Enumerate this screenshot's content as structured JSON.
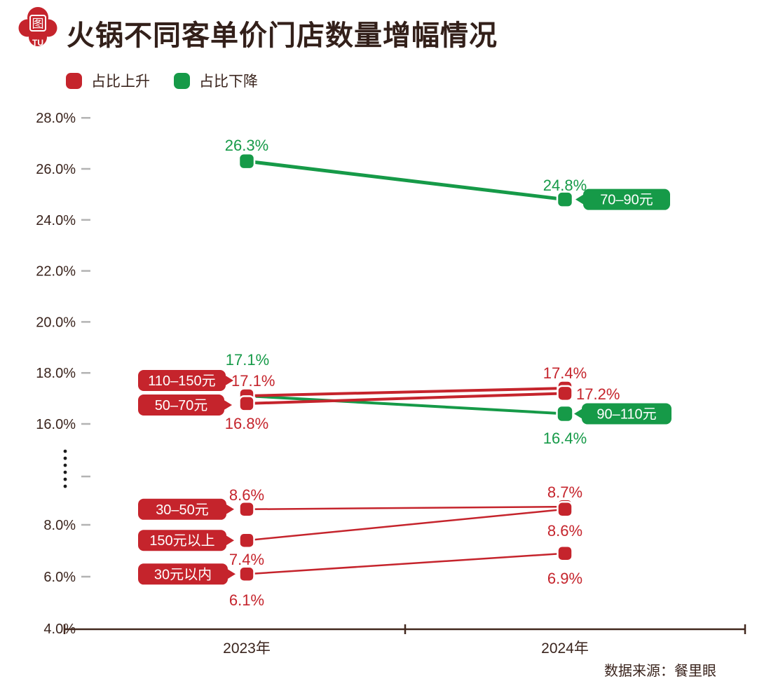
{
  "header": {
    "logo": {
      "char": "图",
      "sub": "TU"
    },
    "title": "火锅不同客单价门店数量增幅情况"
  },
  "legend": {
    "items": [
      {
        "label": "占比上升",
        "color": "#C5242C"
      },
      {
        "label": "占比下降",
        "color": "#169A48"
      }
    ]
  },
  "footer": {
    "source": "数据来源：餐里眼"
  },
  "chart_data": {
    "type": "line",
    "title": "火锅不同客单价门店数量增幅情况",
    "x_categories": [
      "2023年",
      "2024年"
    ],
    "value_suffix": "%",
    "y_axis": {
      "unit": "%",
      "top_ticks": [
        28.0,
        26.0,
        24.0,
        22.0,
        20.0,
        18.0,
        16.0
      ],
      "bottom_ticks": [
        8.0,
        6.0,
        4.0
      ],
      "axis_break_between": [
        16.0,
        8.0
      ],
      "grid": false
    },
    "series": [
      {
        "name": "70–90元",
        "direction": "占比下降",
        "color": "#169A48",
        "values": [
          26.3,
          24.8
        ]
      },
      {
        "name": "90–110元",
        "direction": "占比下降",
        "color": "#169A48",
        "values": [
          17.1,
          16.4
        ]
      },
      {
        "name": "110–150元",
        "direction": "占比上升",
        "color": "#C5242C",
        "values": [
          17.1,
          17.4
        ]
      },
      {
        "name": "50–70元",
        "direction": "占比上升",
        "color": "#C5242C",
        "values": [
          16.8,
          17.2
        ]
      },
      {
        "name": "30–50元",
        "direction": "占比上升",
        "color": "#C5242C",
        "values": [
          8.6,
          8.7
        ]
      },
      {
        "name": "150元以上",
        "direction": "占比上升",
        "color": "#C5242C",
        "values": [
          7.4,
          8.6
        ]
      },
      {
        "name": "30元以内",
        "direction": "占比上升",
        "color": "#C5242C",
        "values": [
          6.1,
          6.9
        ]
      }
    ],
    "legend_position": "top-left"
  }
}
